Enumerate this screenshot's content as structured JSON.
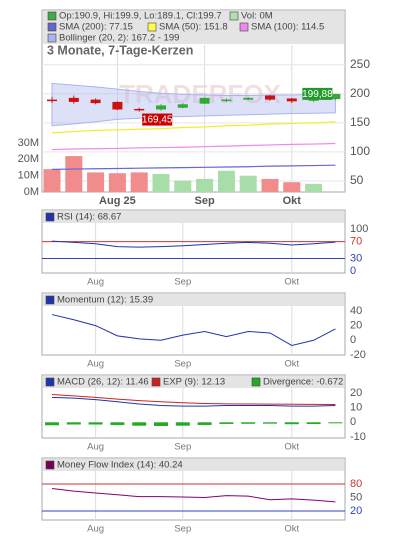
{
  "chart_data": [
    {
      "type": "candlestick",
      "title": "3 Monate, 7-Tage-Kerzen",
      "watermark": "TRADERFOX",
      "legend": [
        {
          "label": "Op:190.9, Hi:199.9, Lo:189.1, Cl:199.7",
          "color": "#44aa44"
        },
        {
          "label": "Vol: 0M",
          "color": "#b0e0b0"
        },
        {
          "label": "SMA (200): 77.15",
          "color": "#6666cc"
        },
        {
          "label": "SMA (50): 151.8",
          "color": "#ffff44"
        },
        {
          "label": "SMA (100): 114.5",
          "color": "#ee88ee"
        },
        {
          "label": "Bollinger (20, 2): 167.2 - 199",
          "color": "#aab4ee"
        }
      ],
      "categories": [
        null,
        null,
        null,
        "Aug 25",
        null,
        null,
        null,
        "Sep",
        null,
        null,
        null,
        "Okt",
        null,
        null
      ],
      "open": [
        190,
        193,
        190,
        186,
        174,
        173,
        176,
        183,
        188,
        190,
        197,
        192,
        188,
        190.9
      ],
      "high": [
        195,
        197,
        192,
        187,
        176,
        182,
        184,
        194,
        192,
        194,
        198,
        193,
        193,
        199.9
      ],
      "low": [
        184,
        183,
        182,
        172,
        169.45,
        171,
        175,
        182,
        186,
        189,
        188,
        184,
        186,
        189.1
      ],
      "close": [
        189,
        186,
        184,
        173,
        172,
        180,
        182,
        193,
        190,
        193,
        190,
        187,
        191,
        199.7
      ],
      "up_color": "#33aa33",
      "down_color": "#cc1111",
      "volume": {
        "values": [
          14,
          22,
          12,
          11.5,
          12,
          11,
          7,
          8,
          13,
          10,
          8,
          6,
          5,
          null
        ],
        "up_color": "#a8dca8",
        "down_color": "#f08c8c",
        "ylim": [
          0,
          90
        ],
        "yticks": [
          {
            "value": 0,
            "label": "0M"
          },
          {
            "value": 10,
            "label": "10M"
          },
          {
            "value": 20,
            "label": "20M"
          },
          {
            "value": 30,
            "label": "30M"
          }
        ]
      },
      "series": [
        {
          "color": "#6666dd",
          "values": [
            70,
            70.5,
            71,
            71.5,
            72,
            72.5,
            73,
            73.5,
            74,
            74.5,
            75.5,
            76,
            76.5,
            77.15
          ]
        },
        {
          "color": "#f0f020",
          "values": [
            133,
            135,
            137,
            138,
            139,
            140,
            142,
            143,
            145,
            146,
            148,
            149,
            150,
            151.8
          ]
        },
        {
          "color": "#ee88ee",
          "values": [
            104,
            105,
            105.5,
            106,
            107,
            107.5,
            108,
            109,
            110,
            111,
            112,
            113,
            113.5,
            114.5
          ]
        }
      ],
      "bollinger": {
        "color": "#aab4ee",
        "upper": [
          218,
          215,
          212,
          208,
          204,
          201,
          199,
          198,
          197,
          197,
          198,
          198,
          199,
          199
        ],
        "lower": [
          145,
          148,
          152,
          156,
          158,
          160,
          161,
          162,
          163,
          164,
          165,
          166,
          166.5,
          167.2
        ]
      },
      "annotations": [
        {
          "text": "199,88",
          "value": 199.88,
          "index": 13,
          "color": "#22992a"
        },
        {
          "text": "169,45",
          "value": 169.45,
          "index": 4,
          "color": "#cc0000"
        }
      ],
      "ylim": [
        31,
        284
      ],
      "yticks": [
        50,
        100,
        150,
        200,
        250
      ],
      "grid": true
    },
    {
      "type": "line",
      "legend": [
        {
          "label": "RSI (14): 68.67",
          "color": "#2233aa"
        }
      ],
      "categories": [
        null,
        null,
        "Aug",
        null,
        null,
        null,
        "Sep",
        null,
        null,
        null,
        null,
        "Okt",
        null,
        null
      ],
      "series": [
        {
          "color": "#2233aa",
          "values": [
            71,
            68,
            65,
            58,
            57,
            58,
            60,
            63,
            66,
            68,
            66,
            62,
            65,
            68.67
          ]
        }
      ],
      "hlines": [
        {
          "value": 70,
          "color": "#cc3333"
        },
        {
          "value": 30,
          "color": "#3344bb"
        }
      ],
      "ylim": [
        -2,
        114
      ],
      "yticks": [
        0,
        30,
        70,
        100
      ],
      "ytick_colors": [
        "#3344bb",
        "#3344bb",
        "#cc3333",
        "#555555"
      ]
    },
    {
      "type": "line",
      "legend": [
        {
          "label": "Momentum (12): 15.39",
          "color": "#2233aa"
        }
      ],
      "categories": [
        null,
        null,
        "Aug",
        null,
        null,
        null,
        "Sep",
        null,
        null,
        null,
        null,
        "Okt",
        null,
        null
      ],
      "series": [
        {
          "color": "#2233aa",
          "values": [
            35,
            28,
            20,
            6,
            2,
            0,
            7,
            12,
            5,
            12,
            10,
            -7,
            0,
            15.39
          ]
        }
      ],
      "ylim": [
        -20,
        48
      ],
      "yticks": [
        -20,
        0,
        20,
        40
      ],
      "ytick_colors": [
        "#555555",
        "#555555",
        "#555555",
        "#555555"
      ]
    },
    {
      "type": "line",
      "legend": [
        {
          "label": "MACD (26, 12): 11.46",
          "color": "#2233aa"
        },
        {
          "label": "EXP (9): 12.13",
          "color": "#cc2222"
        },
        {
          "label": "Divergence: -0.672",
          "color": "#22aa22"
        }
      ],
      "categories": [
        null,
        null,
        "Aug",
        null,
        null,
        null,
        "Sep",
        null,
        null,
        null,
        null,
        "Okt",
        null,
        null
      ],
      "series": [
        {
          "color": "#2233aa",
          "values": [
            17,
            16.5,
            15.5,
            14,
            12.5,
            11.5,
            11,
            11,
            11.5,
            11.5,
            11.5,
            11,
            11,
            11.46
          ]
        },
        {
          "color": "#cc2222",
          "values": [
            19,
            18,
            17,
            15.8,
            14.8,
            14,
            13.3,
            12.8,
            12.6,
            12.5,
            12.4,
            12.3,
            12.2,
            12.13
          ]
        },
        {
          "color": "#22aa22",
          "style": "bar",
          "values": [
            -2,
            -1.5,
            -1.5,
            -1.8,
            -2.3,
            -2.5,
            -2.3,
            -1.8,
            -1.1,
            -1,
            -0.9,
            -1.3,
            -1.2,
            -0.672
          ]
        }
      ],
      "ylim": [
        -10.7,
        23.4
      ],
      "yticks": [
        -10,
        0,
        10,
        20
      ],
      "ytick_colors": [
        "#555555",
        "#555555",
        "#555555",
        "#555555"
      ]
    },
    {
      "type": "line",
      "legend": [
        {
          "label": "Money Flow Index (14): 40.24",
          "color": "#770055"
        }
      ],
      "categories": [
        null,
        null,
        "Aug",
        null,
        null,
        null,
        "Sep",
        null,
        null,
        null,
        null,
        "Okt",
        null,
        null
      ],
      "series": [
        {
          "color": "#880066",
          "values": [
            70,
            64,
            60,
            56,
            52,
            52,
            51,
            50,
            54,
            53,
            45,
            47,
            44,
            40.24
          ]
        }
      ],
      "hlines": [
        {
          "value": 80,
          "color": "#cc3333"
        },
        {
          "value": 20,
          "color": "#3344bb"
        }
      ],
      "ylim": [
        0,
        111
      ],
      "yticks": [
        20,
        50,
        80
      ],
      "ytick_colors": [
        "#3344bb",
        "#555555",
        "#cc3333"
      ]
    }
  ]
}
